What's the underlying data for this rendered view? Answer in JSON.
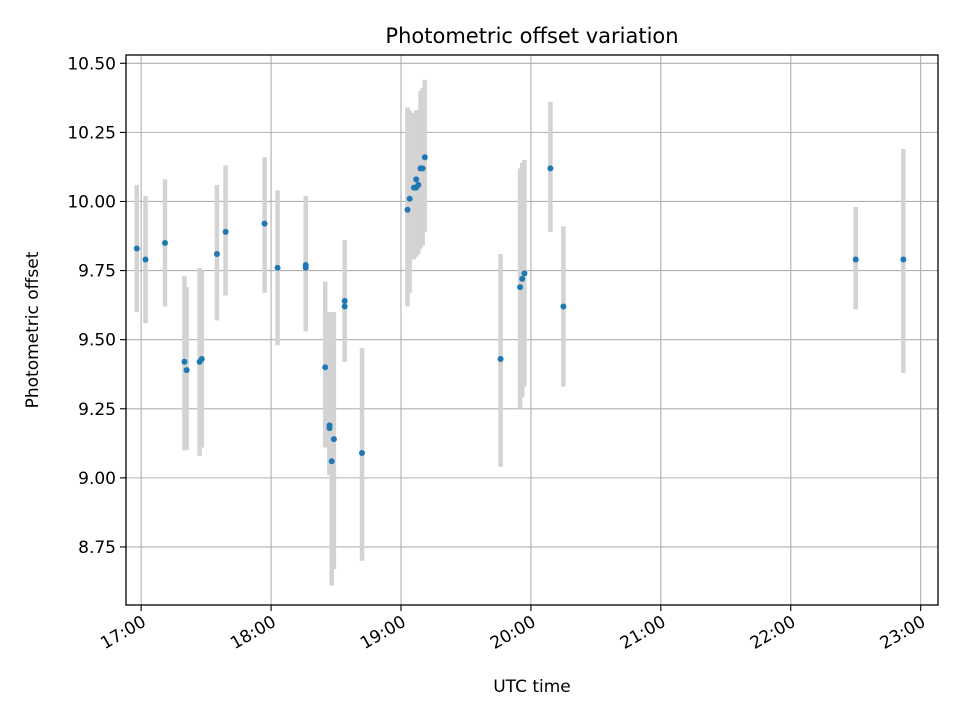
{
  "chart_data": {
    "type": "scatter",
    "title": "Photometric offset variation",
    "xlabel": "UTC time",
    "ylabel": "Photometric offset",
    "x_axis": {
      "kind": "time",
      "range": [
        "16:53",
        "23:08"
      ],
      "tick_labels": [
        "17:00",
        "18:00",
        "19:00",
        "20:00",
        "21:00",
        "22:00",
        "23:00"
      ]
    },
    "y_axis": {
      "range": [
        8.54,
        10.53
      ],
      "tick_values": [
        8.75,
        9.0,
        9.25,
        9.5,
        9.75,
        10.0,
        10.25,
        10.5
      ],
      "tick_labels": [
        "8.75",
        "9.00",
        "9.25",
        "9.50",
        "9.75",
        "10.00",
        "10.25",
        "10.50"
      ]
    },
    "grid": true,
    "legend": "none",
    "point_color": "#1f77b4",
    "errorbar_color": "#d3d3d3",
    "series": [
      {
        "points": [
          {
            "x": "16:58",
            "y": 9.83,
            "err_low": 9.6,
            "err_high": 10.06
          },
          {
            "x": "17:02",
            "y": 9.79,
            "err_low": 9.56,
            "err_high": 10.02
          },
          {
            "x": "17:11",
            "y": 9.85,
            "err_low": 9.62,
            "err_high": 10.08
          },
          {
            "x": "17:20",
            "y": 9.42,
            "err_low": 9.1,
            "err_high": 9.73
          },
          {
            "x": "17:21",
            "y": 9.39,
            "err_low": 9.1,
            "err_high": 9.69
          },
          {
            "x": "17:27",
            "y": 9.42,
            "err_low": 9.08,
            "err_high": 9.76
          },
          {
            "x": "17:28",
            "y": 9.43,
            "err_low": 9.11,
            "err_high": 9.75
          },
          {
            "x": "17:35",
            "y": 9.81,
            "err_low": 9.57,
            "err_high": 10.06
          },
          {
            "x": "17:39",
            "y": 9.89,
            "err_low": 9.66,
            "err_high": 10.13
          },
          {
            "x": "17:57",
            "y": 9.92,
            "err_low": 9.67,
            "err_high": 10.16
          },
          {
            "x": "18:03",
            "y": 9.76,
            "err_low": 9.48,
            "err_high": 10.04
          },
          {
            "x": "18:16",
            "y": 9.77,
            "err_low": 9.53,
            "err_high": 10.02
          },
          {
            "x": "18:16",
            "y": 9.76,
            "err_low": 9.53,
            "err_high": 10.01
          },
          {
            "x": "18:25",
            "y": 9.4,
            "err_low": 9.11,
            "err_high": 9.71
          },
          {
            "x": "18:27",
            "y": 9.19,
            "err_low": 9.01,
            "err_high": 9.6
          },
          {
            "x": "18:27",
            "y": 9.18,
            "err_low": 9.02,
            "err_high": 9.55
          },
          {
            "x": "18:28",
            "y": 9.06,
            "err_low": 8.61,
            "err_high": 9.48
          },
          {
            "x": "18:29",
            "y": 9.14,
            "err_low": 8.67,
            "err_high": 9.6
          },
          {
            "x": "18:34",
            "y": 9.64,
            "err_low": 9.42,
            "err_high": 9.86
          },
          {
            "x": "18:34",
            "y": 9.62,
            "err_low": 9.42,
            "err_high": 9.8
          },
          {
            "x": "18:42",
            "y": 9.09,
            "err_low": 8.7,
            "err_high": 9.47
          },
          {
            "x": "19:03",
            "y": 9.97,
            "err_low": 9.62,
            "err_high": 10.34
          },
          {
            "x": "19:04",
            "y": 10.01,
            "err_low": 9.67,
            "err_high": 10.33
          },
          {
            "x": "19:06",
            "y": 10.05,
            "err_low": 9.79,
            "err_high": 10.32
          },
          {
            "x": "19:07",
            "y": 10.05,
            "err_low": 9.8,
            "err_high": 10.32
          },
          {
            "x": "19:07",
            "y": 10.08,
            "err_low": 9.81,
            "err_high": 10.33
          },
          {
            "x": "19:08",
            "y": 10.06,
            "err_low": 9.81,
            "err_high": 10.33
          },
          {
            "x": "19:09",
            "y": 10.12,
            "err_low": 9.83,
            "err_high": 10.4
          },
          {
            "x": "19:10",
            "y": 10.12,
            "err_low": 9.84,
            "err_high": 10.41
          },
          {
            "x": "19:11",
            "y": 10.16,
            "err_low": 9.89,
            "err_high": 10.44
          },
          {
            "x": "19:46",
            "y": 9.43,
            "err_low": 9.04,
            "err_high": 9.81
          },
          {
            "x": "19:55",
            "y": 9.69,
            "err_low": 9.25,
            "err_high": 10.12
          },
          {
            "x": "19:56",
            "y": 9.72,
            "err_low": 9.29,
            "err_high": 10.14
          },
          {
            "x": "19:57",
            "y": 9.74,
            "err_low": 9.33,
            "err_high": 10.15
          },
          {
            "x": "20:09",
            "y": 10.12,
            "err_low": 9.89,
            "err_high": 10.36
          },
          {
            "x": "20:15",
            "y": 9.62,
            "err_low": 9.33,
            "err_high": 9.91
          },
          {
            "x": "22:30",
            "y": 9.79,
            "err_low": 9.61,
            "err_high": 9.98
          },
          {
            "x": "22:52",
            "y": 9.79,
            "err_low": 9.38,
            "err_high": 10.19
          }
        ]
      }
    ]
  }
}
